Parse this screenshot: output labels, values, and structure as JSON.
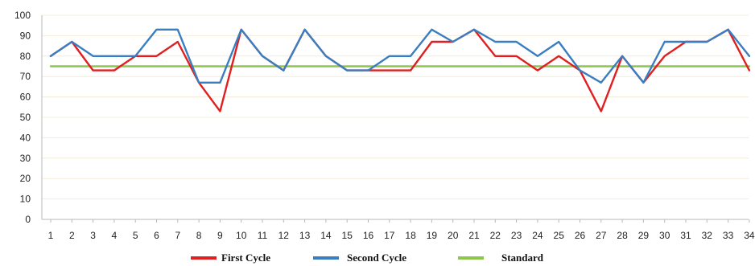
{
  "chart_data": {
    "type": "line",
    "title": "",
    "xlabel": "",
    "ylabel": "",
    "categories": [
      "1",
      "2",
      "3",
      "4",
      "5",
      "6",
      "7",
      "8",
      "9",
      "10",
      "11",
      "12",
      "13",
      "14",
      "15",
      "16",
      "17",
      "18",
      "19",
      "20",
      "21",
      "22",
      "23",
      "24",
      "25",
      "26",
      "27",
      "28",
      "29",
      "30",
      "31",
      "32",
      "33",
      "34"
    ],
    "ylim": [
      0,
      100
    ],
    "yticks": [
      "0",
      "10",
      "20",
      "30",
      "40",
      "50",
      "60",
      "70",
      "80",
      "90",
      "100"
    ],
    "grid": true,
    "legend_position": "bottom",
    "series": [
      {
        "name": "First Cycle",
        "color": "#e02020",
        "values": [
          80,
          87,
          73,
          73,
          80,
          80,
          87,
          67,
          53,
          93,
          80,
          73,
          93,
          80,
          73,
          73,
          73,
          73,
          87,
          87,
          93,
          80,
          80,
          73,
          80,
          73,
          53,
          80,
          67,
          80,
          87,
          87,
          93,
          73
        ]
      },
      {
        "name": "Second Cycle",
        "color": "#3a7ec2",
        "values": [
          80,
          87,
          80,
          80,
          80,
          93,
          93,
          67,
          67,
          93,
          80,
          73,
          93,
          80,
          73,
          73,
          80,
          80,
          93,
          87,
          93,
          87,
          87,
          80,
          87,
          73,
          67,
          80,
          67,
          87,
          87,
          87,
          93,
          80
        ]
      },
      {
        "name": "Standard",
        "color": "#8dc64a",
        "values": [
          75,
          75,
          75,
          75,
          75,
          75,
          75,
          75,
          75,
          75,
          75,
          75,
          75,
          75,
          75,
          75,
          75,
          75,
          75,
          75,
          75,
          75,
          75,
          75,
          75,
          75,
          75,
          75,
          75,
          75,
          75,
          75,
          75,
          75
        ]
      }
    ]
  }
}
